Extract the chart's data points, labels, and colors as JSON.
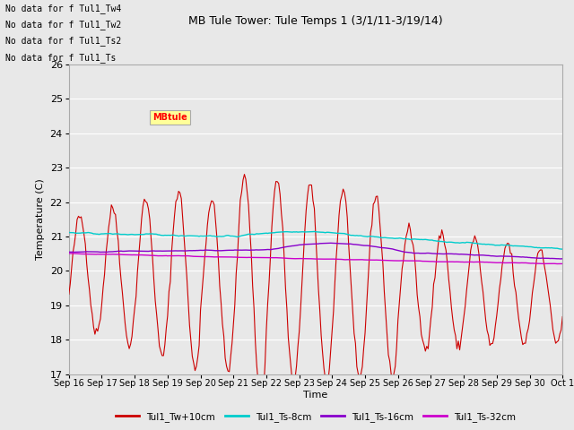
{
  "title": "MB Tule Tower: Tule Temps 1 (3/1/11-3/19/14)",
  "ylabel": "Temperature (C)",
  "xlabel": "Time",
  "ylim": [
    17.0,
    26.0
  ],
  "yticks": [
    17.0,
    18.0,
    19.0,
    20.0,
    21.0,
    22.0,
    23.0,
    24.0,
    25.0,
    26.0
  ],
  "xtick_labels": [
    "Sep 16",
    "Sep 17",
    "Sep 18",
    "Sep 19",
    "Sep 20",
    "Sep 21",
    "Sep 22",
    "Sep 23",
    "Sep 24",
    "Sep 25",
    "Sep 26",
    "Sep 27",
    "Sep 28",
    "Sep 29",
    "Sep 30",
    "Oct 1"
  ],
  "colors": {
    "Tw10cm": "#cc0000",
    "Ts8cm": "#00cccc",
    "Ts16cm": "#8800cc",
    "Ts32cm": "#cc00cc"
  },
  "legend_labels": [
    "Tul1_Tw+10cm",
    "Tul1_Ts-8cm",
    "Tul1_Ts-16cm",
    "Tul1_Ts-32cm"
  ],
  "no_data_texts": [
    "No data for f Tul1_Tw4",
    "No data for f Tul1_Tw2",
    "No data for f Tul1_Ts2",
    "No data for f Tul1_Ts"
  ],
  "tooltip_text": "MBtule",
  "bg_color": "#e8e8e8",
  "grid_color": "#ffffff",
  "fig_facecolor": "#e8e8e8"
}
